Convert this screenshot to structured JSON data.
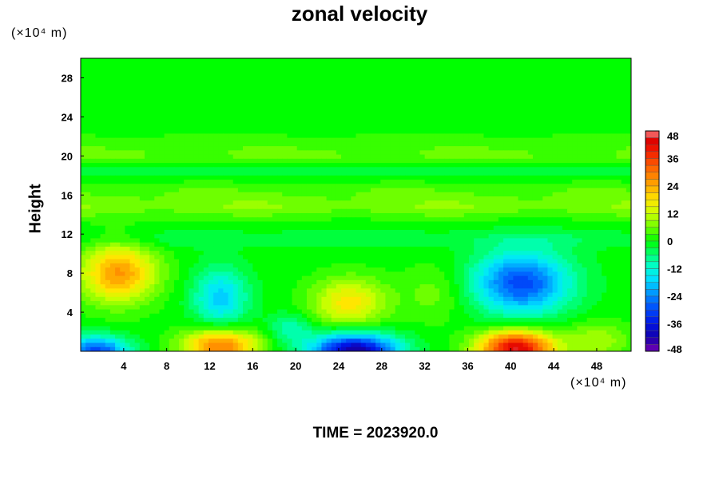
{
  "chart_data": {
    "type": "heatmap",
    "title": "zonal velocity",
    "xlabel": "",
    "ylabel": "Height",
    "x_unit": "(×10⁴ m)",
    "y_unit": "(×10⁴ m)",
    "x_ticks": [
      4,
      8,
      12,
      16,
      20,
      24,
      28,
      32,
      36,
      40,
      44,
      48
    ],
    "y_ticks": [
      4,
      8,
      12,
      16,
      20,
      24,
      28
    ],
    "xlim": [
      0,
      51.2
    ],
    "ylim": [
      0,
      30
    ],
    "colorbar": {
      "ticks": [
        48,
        36,
        24,
        12,
        0,
        -12,
        -24,
        -36,
        -48
      ],
      "range": [
        -48,
        48
      ]
    },
    "features": [
      {
        "x": 3.5,
        "y": 8.0,
        "value": 26,
        "sx": 3.5,
        "sy": 3.0
      },
      {
        "x": 13.0,
        "y": 0.5,
        "value": 30,
        "sx": 3.5,
        "sy": 1.8
      },
      {
        "x": 25.0,
        "y": 5.0,
        "value": 18,
        "sx": 3.5,
        "sy": 2.5
      },
      {
        "x": 40.5,
        "y": 0.3,
        "value": 44,
        "sx": 3.5,
        "sy": 1.8
      },
      {
        "x": 1.5,
        "y": 0.0,
        "value": -30,
        "sx": 3.0,
        "sy": 1.5
      },
      {
        "x": 13.0,
        "y": 5.5,
        "value": -18,
        "sx": 2.5,
        "sy": 3.0
      },
      {
        "x": 25.5,
        "y": 0.0,
        "value": -44,
        "sx": 4.0,
        "sy": 1.8
      },
      {
        "x": 41.0,
        "y": 7.0,
        "value": -30,
        "sx": 4.5,
        "sy": 3.2
      },
      {
        "x": 19.5,
        "y": 2.3,
        "value": -10,
        "sx": 2.0,
        "sy": 1.5
      },
      {
        "x": 48.0,
        "y": 1.0,
        "value": 10,
        "sx": 3.0,
        "sy": 2.0
      },
      {
        "x": 33.0,
        "y": 6.0,
        "value": 6,
        "sx": 3.0,
        "sy": 3.0
      }
    ],
    "bands": [
      {
        "y": 11.5,
        "value": -4,
        "w": 1.0
      },
      {
        "y": 14.8,
        "value": 8,
        "w": 1.2
      },
      {
        "y": 16.5,
        "value": 4,
        "w": 1.0
      },
      {
        "y": 18.5,
        "value": -4,
        "w": 0.8
      },
      {
        "y": 20.0,
        "value": 6,
        "w": 0.8
      },
      {
        "y": 21.0,
        "value": 3,
        "w": 0.6
      },
      {
        "y": 22.0,
        "value": 2,
        "w": 0.6
      }
    ]
  },
  "footer": {
    "time_label": "TIME = 2023920.0"
  }
}
